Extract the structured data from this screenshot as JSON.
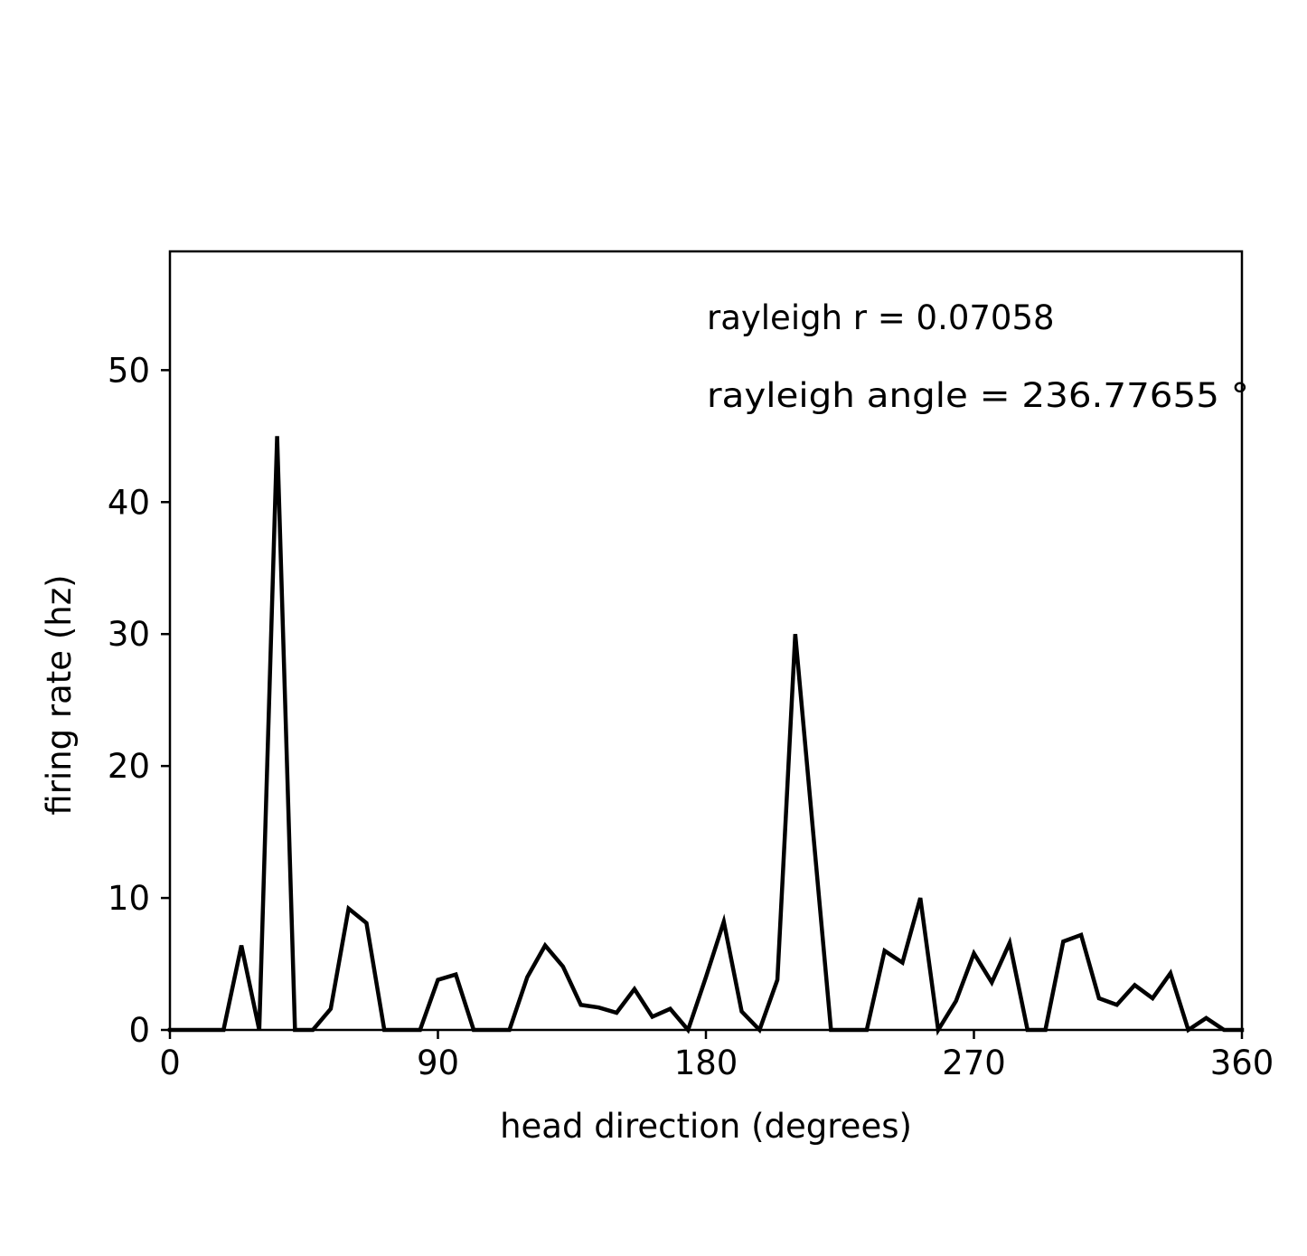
{
  "chart_data": {
    "type": "line",
    "xlabel": "head direction (degrees)",
    "ylabel": "firing rate (hz)",
    "xlim": [
      0,
      360
    ],
    "ylim": [
      0,
      59
    ],
    "xticks": [
      0,
      90,
      180,
      270,
      360
    ],
    "yticks": [
      0,
      10,
      20,
      30,
      40,
      50
    ],
    "grid": false,
    "line_color": "#000000",
    "annotations": [
      {
        "text": "rayleigh r = 0.07058"
      },
      {
        "text": "rayleigh angle = 236.77655 °"
      }
    ],
    "series": [
      {
        "x": [
          0,
          6,
          12,
          18,
          24,
          30,
          36,
          42,
          48,
          54,
          60,
          66,
          72,
          78,
          84,
          90,
          96,
          102,
          108,
          114,
          120,
          126,
          132,
          138,
          144,
          150,
          156,
          162,
          168,
          174,
          180,
          186,
          192,
          198,
          204,
          210,
          216,
          222,
          228,
          234,
          240,
          246,
          252,
          258,
          264,
          270,
          276,
          282,
          288,
          294,
          300,
          306,
          312,
          318,
          324,
          330,
          336,
          342,
          348,
          354,
          360
        ],
        "y": [
          0,
          0,
          0,
          0,
          6.4,
          0,
          45,
          0,
          0,
          1.6,
          9.2,
          8.1,
          0,
          0,
          0,
          3.8,
          4.2,
          0,
          0,
          0,
          4.0,
          6.4,
          4.8,
          1.9,
          1.7,
          1.3,
          3.1,
          1.0,
          1.6,
          0,
          4.0,
          8.2,
          1.4,
          0,
          3.8,
          30,
          15,
          0,
          0,
          0,
          6.0,
          5.1,
          10,
          0,
          2.2,
          5.8,
          3.6,
          6.6,
          0,
          0,
          6.7,
          7.2,
          2.4,
          1.9,
          3.4,
          2.4,
          4.3,
          0,
          0.9,
          0,
          0
        ]
      }
    ]
  }
}
